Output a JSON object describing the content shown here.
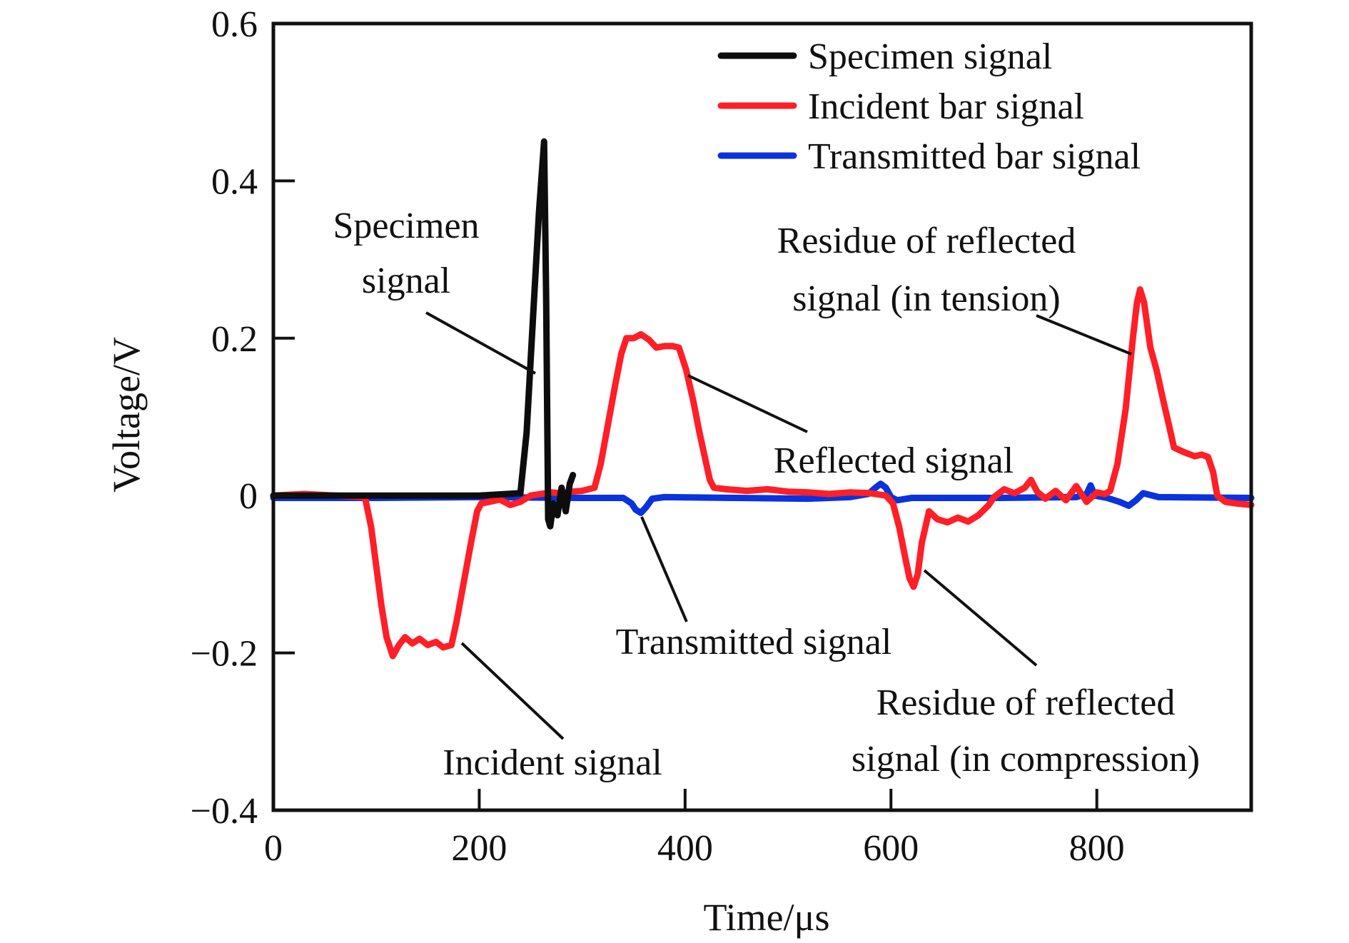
{
  "chart_data": {
    "type": "line",
    "title": "",
    "xlabel": "Time/μs",
    "ylabel": "Voltage/V",
    "xlim": [
      0,
      950
    ],
    "ylim": [
      -0.4,
      0.6
    ],
    "xticks": [
      0,
      200,
      400,
      600,
      800
    ],
    "xtick_labels": [
      "0",
      "200",
      "400",
      "600",
      "800"
    ],
    "yticks": [
      -0.4,
      -0.2,
      0,
      0.2,
      0.4,
      0.6
    ],
    "ytick_labels": [
      "−0.4",
      "−0.2",
      "0",
      "0.2",
      "0.4",
      "0.6"
    ],
    "grid": false,
    "legend_position": "top-right",
    "series": [
      {
        "name": "Specimen signal",
        "color": "#0d0d0d",
        "x": [
          0,
          50,
          100,
          150,
          200,
          240,
          246,
          252,
          258,
          263,
          265,
          267,
          269,
          272,
          276,
          280,
          284,
          288,
          291
        ],
        "y": [
          0.0,
          0.0,
          0.0,
          0.0,
          0.0,
          0.003,
          0.08,
          0.22,
          0.36,
          0.45,
          0.25,
          -0.03,
          -0.039,
          -0.01,
          -0.025,
          0.01,
          -0.02,
          0.015,
          0.026
        ]
      },
      {
        "name": "Incident bar signal",
        "color": "#ff1f26",
        "x": [
          0,
          30,
          60,
          89,
          95,
          100,
          105,
          110,
          116,
          122,
          128,
          135,
          142,
          150,
          158,
          165,
          173,
          178,
          185,
          192,
          198,
          202,
          210,
          220,
          230,
          240,
          250,
          260,
          270,
          280,
          290,
          300,
          312,
          318,
          325,
          332,
          338,
          343,
          350,
          357,
          365,
          372,
          380,
          388,
          394,
          401,
          408,
          414,
          419,
          424,
          428,
          440,
          460,
          480,
          500,
          520,
          540,
          560,
          580,
          595,
          602,
          608,
          614,
          618,
          622,
          626,
          630,
          637,
          645,
          655,
          665,
          675,
          685,
          695,
          700,
          710,
          720,
          730,
          736,
          742,
          750,
          760,
          770,
          780,
          790,
          800,
          808,
          813,
          820,
          828,
          835,
          839,
          842,
          846,
          852,
          858,
          864,
          870,
          875,
          885,
          895,
          902,
          908,
          913,
          917,
          925,
          935,
          950
        ],
        "y": [
          0.0,
          0.002,
          0.0,
          -0.002,
          -0.04,
          -0.09,
          -0.14,
          -0.18,
          -0.204,
          -0.19,
          -0.18,
          -0.188,
          -0.182,
          -0.19,
          -0.186,
          -0.193,
          -0.19,
          -0.16,
          -0.11,
          -0.06,
          -0.02,
          -0.01,
          -0.008,
          -0.005,
          -0.012,
          -0.008,
          0.0,
          0.002,
          0.004,
          0.003,
          0.005,
          0.006,
          0.01,
          0.04,
          0.09,
          0.14,
          0.18,
          0.2,
          0.2,
          0.205,
          0.198,
          0.188,
          0.19,
          0.19,
          0.188,
          0.16,
          0.12,
          0.08,
          0.05,
          0.02,
          0.01,
          0.008,
          0.006,
          0.008,
          0.005,
          0.004,
          0.002,
          0.004,
          0.003,
          0.0,
          -0.01,
          -0.04,
          -0.08,
          -0.105,
          -0.116,
          -0.1,
          -0.06,
          -0.02,
          -0.03,
          -0.034,
          -0.028,
          -0.033,
          -0.025,
          -0.012,
          -0.002,
          0.008,
          0.003,
          0.01,
          0.02,
          0.005,
          -0.004,
          0.006,
          -0.006,
          0.012,
          -0.008,
          0.004,
          0.002,
          0.006,
          0.04,
          0.11,
          0.2,
          0.245,
          0.262,
          0.245,
          0.188,
          0.16,
          0.124,
          0.09,
          0.061,
          0.055,
          0.05,
          0.052,
          0.049,
          0.03,
          0.0,
          -0.008,
          -0.01,
          -0.012
        ]
      },
      {
        "name": "Transmitted bar signal",
        "color": "#0a33dd",
        "x": [
          0,
          100,
          200,
          300,
          340,
          348,
          352,
          357,
          362,
          368,
          380,
          450,
          520,
          560,
          578,
          585,
          590,
          595,
          600,
          606,
          620,
          700,
          780,
          790,
          794,
          798,
          810,
          822,
          831,
          838,
          845,
          860,
          950
        ],
        "y": [
          -0.003,
          -0.003,
          -0.002,
          -0.003,
          -0.003,
          -0.01,
          -0.018,
          -0.022,
          -0.015,
          -0.004,
          -0.002,
          -0.003,
          -0.004,
          -0.002,
          0.002,
          0.01,
          0.015,
          0.01,
          -0.002,
          -0.006,
          -0.003,
          -0.003,
          -0.002,
          0.002,
          0.013,
          0.0,
          -0.003,
          -0.008,
          -0.013,
          -0.006,
          0.003,
          -0.002,
          -0.003
        ]
      }
    ],
    "annotations": [
      {
        "lines": [
          "Specimen",
          "signal"
        ],
        "points_to": "Specimen signal peak (~260 μs)"
      },
      {
        "lines": [
          "Residue of reflected",
          "signal (in tension)"
        ],
        "points_to": "Incident bar signal peak (~842 μs)"
      },
      {
        "lines": [
          "Reflected signal"
        ],
        "points_to": "Incident bar signal plateau (~400 μs)"
      },
      {
        "lines": [
          "Transmitted signal"
        ],
        "points_to": "Transmitted bar signal dip (~357 μs)"
      },
      {
        "lines": [
          "Incident signal"
        ],
        "points_to": "Incident bar signal trough (~175 μs)"
      },
      {
        "lines": [
          "Residue of reflected",
          "signal (in compression)"
        ],
        "points_to": "Incident bar signal dip (~622 μs)"
      }
    ]
  }
}
